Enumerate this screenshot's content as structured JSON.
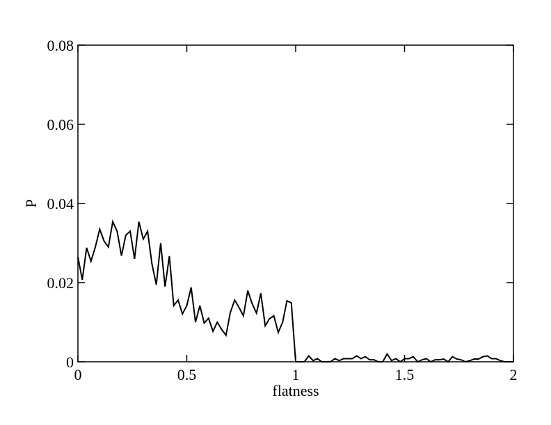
{
  "chart_data": {
    "type": "line",
    "x_label": "flatness",
    "y_label": "P",
    "x": [
      0,
      0.02,
      0.04,
      0.06,
      0.08,
      0.1,
      0.12,
      0.14,
      0.16,
      0.18,
      0.2,
      0.22,
      0.24,
      0.26,
      0.28,
      0.3,
      0.32,
      0.34,
      0.36,
      0.38,
      0.4,
      0.42,
      0.44,
      0.46,
      0.48,
      0.5,
      0.52,
      0.54,
      0.56,
      0.58,
      0.6,
      0.62,
      0.64,
      0.66,
      0.68,
      0.7,
      0.72,
      0.74,
      0.76,
      0.78,
      0.8,
      0.82,
      0.84,
      0.86,
      0.88,
      0.9,
      0.92,
      0.94,
      0.96,
      0.98,
      1,
      1.02,
      1.04,
      1.06,
      1.08,
      1.1,
      1.12,
      1.14,
      1.16,
      1.18,
      1.2,
      1.22,
      1.24,
      1.26,
      1.28,
      1.3,
      1.32,
      1.34,
      1.36,
      1.38,
      1.4,
      1.42,
      1.44,
      1.46,
      1.48,
      1.5,
      1.52,
      1.54,
      1.56,
      1.58,
      1.6,
      1.62,
      1.64,
      1.66,
      1.68,
      1.7,
      1.72,
      1.74,
      1.76,
      1.78,
      1.8,
      1.82,
      1.84,
      1.86,
      1.88,
      1.9,
      1.92,
      1.94,
      1.96,
      1.98,
      2
    ],
    "series": [
      {
        "color": "#000000",
        "values": [
          0.0265,
          0.0207,
          0.0288,
          0.0254,
          0.029,
          0.0335,
          0.0305,
          0.029,
          0.0354,
          0.033,
          0.0268,
          0.032,
          0.033,
          0.026,
          0.0354,
          0.031,
          0.033,
          0.0247,
          0.0195,
          0.03,
          0.019,
          0.0267,
          0.0142,
          0.0156,
          0.0121,
          0.0142,
          0.0188,
          0.01,
          0.0142,
          0.0098,
          0.011,
          0.0077,
          0.01,
          0.0082,
          0.0067,
          0.0125,
          0.0156,
          0.0137,
          0.0116,
          0.018,
          0.0147,
          0.0123,
          0.0173,
          0.0091,
          0.0109,
          0.0116,
          0.0074,
          0.01,
          0.0154,
          0.0149,
          0,
          0,
          0,
          0.0015,
          0.0003,
          0.0008,
          0,
          0,
          0,
          0.0008,
          0.0003,
          0.0008,
          0.0008,
          0.0008,
          0.0015,
          0.0008,
          0.0013,
          0.0005,
          0.0005,
          0,
          0,
          0.002,
          0.0003,
          0.0008,
          0,
          0.0008,
          0.0008,
          0.0013,
          0,
          0.0005,
          0.0008,
          0,
          0.0005,
          0.0005,
          0.0007,
          0,
          0.0013,
          0.0007,
          0.0005,
          0,
          0.0003,
          0.0007,
          0.0007,
          0.0013,
          0.0015,
          0.0008,
          0.0008,
          0.0003,
          0,
          0,
          0
        ]
      }
    ],
    "xlim": [
      0,
      2
    ],
    "xticks": [
      0,
      0.5,
      1,
      1.5,
      2
    ],
    "ylim": [
      0,
      0.08
    ],
    "yticks": [
      0,
      0.02,
      0.04,
      0.06,
      0.08
    ]
  }
}
